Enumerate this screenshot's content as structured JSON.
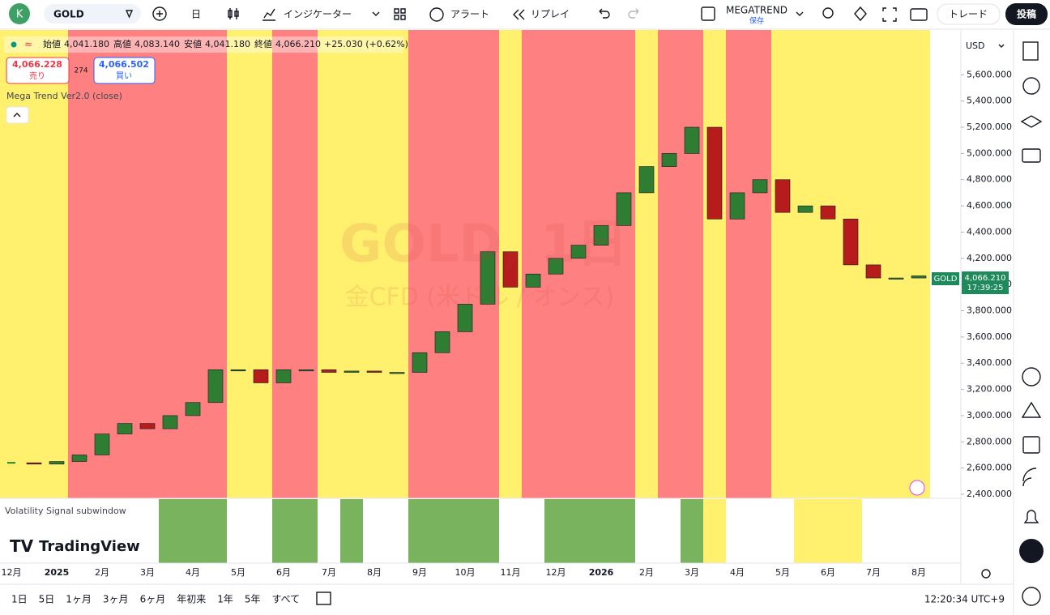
{
  "ui": {
    "avatar": "K",
    "symbol": "GOLD",
    "interval": "日",
    "indicators": "インジケーター",
    "alert": "アラート",
    "replay": "リプレイ",
    "layout_name": "MEGATREND",
    "layout_saved": "保存",
    "trade": "トレード",
    "publish": "投稿",
    "legend": {
      "open_label": "始値",
      "open": "4,041.180",
      "high_label": "高値",
      "high": "4,083.140",
      "low_label": "安値",
      "low": "4,041.180",
      "close_label": "終値",
      "close": "4,066.210",
      "change": "+25.030 (+0.62%)"
    },
    "sell_price": "4,066.228",
    "sell": "売り",
    "spread": "274",
    "buy_price": "4,066.502",
    "buy": "買い",
    "indicator_name": "Mega Trend Ver2.0 (close)",
    "subwindow_name": "Volatility Signal subwindow",
    "watermark_title": "GOLD, 1日",
    "watermark_subtitle": "金CFD (米ドル / オンス)",
    "brand": "TradingView",
    "currency": "USD",
    "price_tag_symbol": "GOLD",
    "price_tag_value": "4,066.210",
    "price_tag_time": "17:39:25",
    "ranges": [
      "1日",
      "5日",
      "1ヶ月",
      "3ヶ月",
      "6ヶ月",
      "年初来",
      "1年",
      "5年",
      "すべて"
    ],
    "clock": "12:20:34 UTC+9"
  },
  "chart_data": {
    "type": "candlestick",
    "categories": [
      "12月",
      null,
      "2025",
      null,
      "2月",
      null,
      "3月",
      null,
      "4月",
      null,
      "5月",
      null,
      "6月",
      null,
      "7月",
      null,
      "8月",
      null,
      "9月",
      null,
      "10月",
      null,
      "11月",
      null,
      "12月",
      null,
      "2026",
      null,
      "2月",
      null,
      "3月",
      null,
      "4月",
      null,
      "5月",
      null,
      "6月",
      null,
      "7月",
      null,
      "8月"
    ],
    "values": [
      2640,
      2630,
      2650,
      2700,
      2860,
      2940,
      2900,
      3000,
      3100,
      3350,
      3350,
      3250,
      3350,
      3350,
      3330,
      3340,
      3330,
      3330,
      3480,
      3640,
      3850,
      4250,
      3980,
      4080,
      4200,
      4300,
      4450,
      4700,
      4900,
      5000,
      5200,
      4500,
      4700,
      4800,
      4550,
      4600,
      4500,
      4150,
      4050,
      4050,
      4066.21
    ],
    "up_color": "#2e7d32",
    "down_color": "#b71c1c",
    "bands": [
      "#fff06e",
      "#fff06e",
      "#fff06e",
      "#ff8080",
      "#ff8080",
      "#ff8080",
      "#ff8080",
      "#ff8080",
      "#ff8080",
      "#ff8080",
      "#fff06e",
      "#fff06e",
      "#ff8080",
      "#ff8080",
      "#fff06e",
      "#fff06e",
      "#fff06e",
      "#fff06e",
      "#ff8080",
      "#ff8080",
      "#ff8080",
      "#ff8080",
      "#fff06e",
      "#ff8080",
      "#ff8080",
      "#ff8080",
      "#ff8080",
      "#ff8080",
      "#fff06e",
      "#ff8080",
      "#ff8080",
      "#fff06e",
      "#ff8080",
      "#ff8080",
      "#fff06e",
      "#fff06e",
      "#fff06e",
      "#fff06e",
      "#fff06e",
      "#fff06e",
      "#fff06e"
    ],
    "subwindow": [
      null,
      null,
      null,
      null,
      null,
      null,
      null,
      "#79b35d",
      "#79b35d",
      "#79b35d",
      null,
      null,
      "#79b35d",
      "#79b35d",
      null,
      "#79b35d",
      null,
      null,
      "#79b35d",
      "#79b35d",
      "#79b35d",
      "#79b35d",
      null,
      null,
      "#79b35d",
      "#79b35d",
      "#79b35d",
      "#79b35d",
      null,
      null,
      "#79b35d",
      "#fff06e",
      null,
      null,
      null,
      "#fff06e",
      "#fff06e",
      "#fff06e",
      null,
      null,
      null
    ],
    "ylim": [
      2369,
      5942
    ],
    "yticks": [
      {
        "value": 2400,
        "label": "2,400.000"
      },
      {
        "value": 2600,
        "label": "2,600.000"
      },
      {
        "value": 2800,
        "label": "2,800.000"
      },
      {
        "value": 3000,
        "label": "3,000.000"
      },
      {
        "value": 3200,
        "label": "3,200.000"
      },
      {
        "value": 3400,
        "label": "3,400.000"
      },
      {
        "value": 3600,
        "label": "3,600.000"
      },
      {
        "value": 3800,
        "label": "3,800.000"
      },
      {
        "value": 4000,
        "label": "4,000.000"
      },
      {
        "value": 4200,
        "label": "4,200.000"
      },
      {
        "value": 4400,
        "label": "4,400.000"
      },
      {
        "value": 4600,
        "label": "4,600.000"
      },
      {
        "value": 4800,
        "label": "4,800.000"
      },
      {
        "value": 5000,
        "label": "5,000.000"
      },
      {
        "value": 5200,
        "label": "5,200.000"
      },
      {
        "value": 5400,
        "label": "5,400.000"
      },
      {
        "value": 5600,
        "label": "5,600.000"
      }
    ],
    "grid": false
  }
}
